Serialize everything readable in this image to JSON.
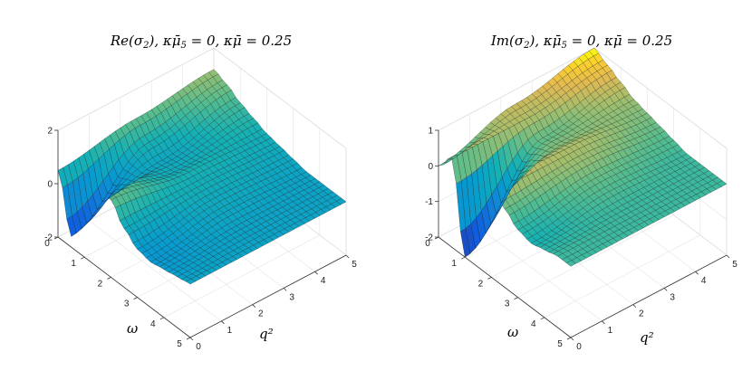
{
  "chart_data": [
    {
      "type": "surface",
      "title": "Re(σ₂),  κμ̄₅ = 0,  κμ̄ = 0.25",
      "title_parts": {
        "func": "Re(σ",
        "sub": "2",
        "rest": "),  κμ̄",
        "sub2": "5",
        "tail": " = 0,  κμ̄ = 0.25"
      },
      "xlabel": "ω",
      "ylabel": "q²",
      "zlabel": "",
      "xlim": [
        0,
        5
      ],
      "ylim": [
        0,
        5
      ],
      "zlim": [
        -2,
        2
      ],
      "xticks": [
        "0",
        "1",
        "2",
        "3",
        "4",
        "5"
      ],
      "yticks": [
        "0",
        "1",
        "2",
        "3",
        "4",
        "5"
      ],
      "zticks": [
        "-2",
        "0",
        "2"
      ],
      "colormap": "parula",
      "grid": true,
      "surface_rows": [
        {
          "q2": 0,
          "omega": [
            0,
            0.5,
            1.0,
            1.5,
            2.0,
            2.5,
            3.0,
            3.5,
            4.0,
            4.5,
            5.0
          ],
          "z": [
            0.5,
            -1.6,
            -0.4,
            0.9,
            0.9,
            0.2,
            -0.2,
            -0.3,
            -0.2,
            -0.1,
            0.0
          ]
        },
        {
          "q2": 2.5,
          "omega": [
            0,
            0.5,
            1.0,
            1.5,
            2.0,
            2.5,
            3.0,
            3.5,
            4.0,
            4.5,
            5.0
          ],
          "z": [
            0.9,
            0.4,
            0.1,
            0.2,
            0.4,
            0.3,
            0.2,
            0.1,
            0.0,
            0.0,
            0.0
          ]
        },
        {
          "q2": 5,
          "omega": [
            0,
            0.5,
            1.0,
            1.5,
            2.0,
            2.5,
            3.0,
            3.5,
            4.0,
            4.5,
            5.0
          ],
          "z": [
            1.2,
            1.0,
            0.7,
            0.5,
            0.3,
            0.2,
            0.1,
            0.0,
            0.0,
            0.0,
            0.0
          ]
        }
      ]
    },
    {
      "type": "surface",
      "title": "Im(σ₂),  κμ̄₅ = 0,  κμ̄ = 0.25",
      "title_parts": {
        "func": "Im(σ",
        "sub": "2",
        "rest": "),  κμ̄",
        "sub2": "5",
        "tail": " = 0,  κμ̄ = 0.25"
      },
      "xlabel": "ω",
      "ylabel": "q²",
      "zlabel": "",
      "xlim": [
        0,
        5
      ],
      "ylim": [
        0,
        5
      ],
      "zlim": [
        -2,
        1
      ],
      "xticks": [
        "0",
        "1",
        "2",
        "3",
        "4",
        "5"
      ],
      "yticks": [
        "0",
        "1",
        "2",
        "3",
        "4",
        "5"
      ],
      "zticks": [
        "-2",
        "-1",
        "0",
        "1"
      ],
      "colormap": "parula",
      "grid": true,
      "surface_rows": [
        {
          "q2": 0,
          "omega": [
            0,
            0.5,
            1.0,
            1.5,
            2.0,
            2.5,
            3.0,
            3.5,
            4.0,
            4.5,
            5.0
          ],
          "z": [
            0.0,
            0.5,
            -2.0,
            -0.6,
            0.6,
            0.2,
            -0.1,
            -0.2,
            -0.1,
            0.0,
            0.0
          ]
        },
        {
          "q2": 2.5,
          "omega": [
            0,
            0.5,
            1.0,
            1.5,
            2.0,
            2.5,
            3.0,
            3.5,
            4.0,
            4.5,
            5.0
          ],
          "z": [
            0.6,
            0.5,
            0.2,
            0.3,
            0.5,
            0.4,
            0.2,
            0.1,
            0.0,
            0.0,
            0.0
          ]
        },
        {
          "q2": 5,
          "omega": [
            0,
            0.5,
            1.0,
            1.5,
            2.0,
            2.5,
            3.0,
            3.5,
            4.0,
            4.5,
            5.0
          ],
          "z": [
            1.0,
            0.8,
            0.6,
            0.4,
            0.3,
            0.2,
            0.1,
            0.0,
            0.0,
            0.0,
            0.0
          ]
        }
      ]
    }
  ]
}
